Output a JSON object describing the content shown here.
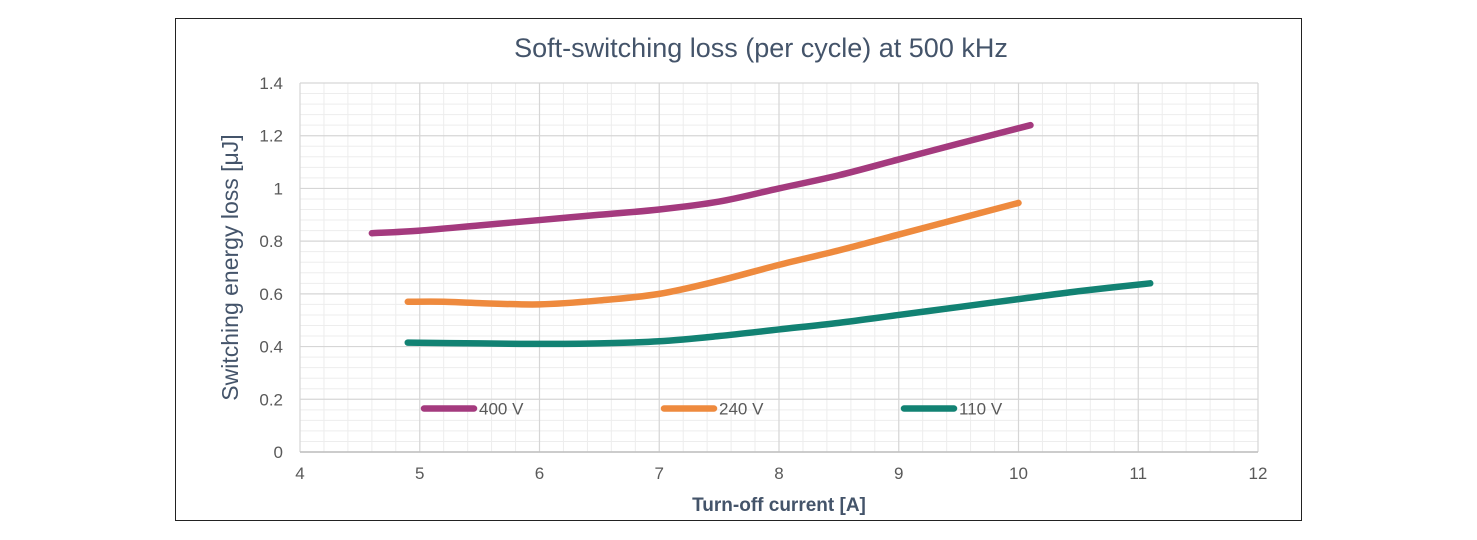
{
  "chart_data": {
    "type": "line",
    "title": "Soft-switching loss (per cycle) at 500 kHz",
    "xlabel": "Turn-off current [A]",
    "ylabel": "Switching energy loss [μJ]",
    "xlim": [
      4,
      12
    ],
    "ylim": [
      0,
      1.4
    ],
    "xticks": [
      4,
      5,
      6,
      7,
      8,
      9,
      10,
      11,
      12
    ],
    "xtick_labels": [
      "4",
      "5",
      "6",
      "7",
      "8",
      "9",
      "10",
      "11",
      "12"
    ],
    "yticks": [
      0,
      0.2,
      0.4,
      0.6,
      0.8,
      1.0,
      1.2,
      1.4
    ],
    "ytick_labels": [
      "0",
      "0.2",
      "0.4",
      "0.6",
      "0.8",
      "1",
      "1.2",
      "1.4"
    ],
    "grid": true,
    "legend_position": "bottom-inside",
    "series": [
      {
        "name": "400 V",
        "color": "#a43a7e",
        "x": [
          4.6,
          5.0,
          5.5,
          6.0,
          6.5,
          7.0,
          7.5,
          8.0,
          8.5,
          9.0,
          9.5,
          10.1
        ],
        "y": [
          0.83,
          0.84,
          0.86,
          0.88,
          0.9,
          0.92,
          0.95,
          1.0,
          1.05,
          1.11,
          1.17,
          1.24
        ]
      },
      {
        "name": "240 V",
        "color": "#ee8a3e",
        "x": [
          4.9,
          5.2,
          5.5,
          6.0,
          6.5,
          7.0,
          7.5,
          8.0,
          8.5,
          9.0,
          9.5,
          10.0
        ],
        "y": [
          0.57,
          0.57,
          0.565,
          0.56,
          0.575,
          0.6,
          0.65,
          0.71,
          0.765,
          0.825,
          0.885,
          0.945
        ]
      },
      {
        "name": "110 V",
        "color": "#128273",
        "x": [
          4.9,
          5.5,
          6.0,
          6.5,
          7.0,
          7.5,
          8.0,
          8.5,
          9.0,
          9.5,
          10.0,
          10.5,
          11.1
        ],
        "y": [
          0.415,
          0.412,
          0.41,
          0.412,
          0.42,
          0.44,
          0.465,
          0.49,
          0.52,
          0.55,
          0.58,
          0.61,
          0.64
        ]
      }
    ]
  }
}
